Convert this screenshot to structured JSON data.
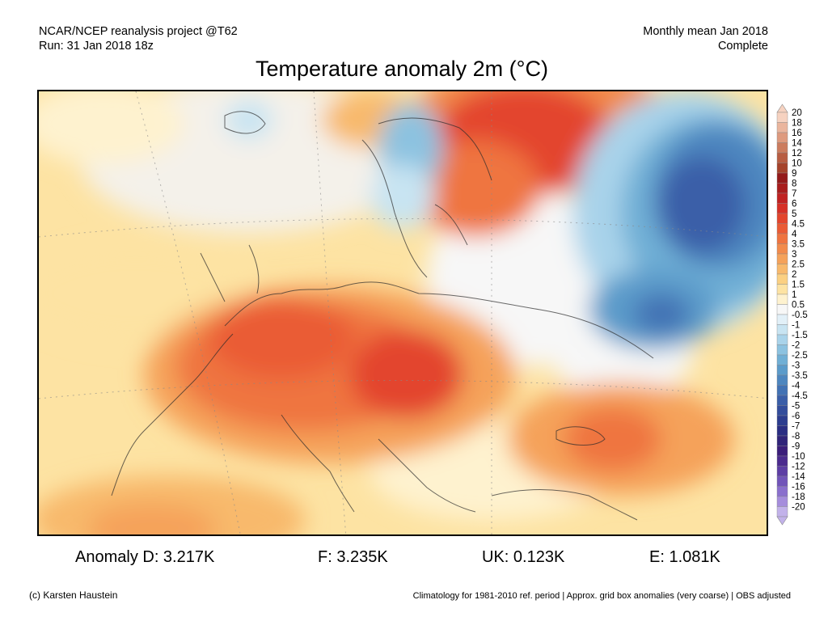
{
  "header": {
    "line1_left": "NCAR/NCEP reanalysis project @T62",
    "line2_left": "Run: 31 Jan 2018 18z",
    "line1_right": "Monthly mean Jan 2018",
    "line2_right": "Complete"
  },
  "title": "Temperature anomaly 2m (°C)",
  "colorbar": {
    "labels": [
      "20",
      "18",
      "16",
      "14",
      "12",
      "10",
      "9",
      "8",
      "7",
      "6",
      "5",
      "4.5",
      "4",
      "3.5",
      "3",
      "2.5",
      "2",
      "1.5",
      "1",
      "0.5",
      "-0.5",
      "-1",
      "-1.5",
      "-2",
      "-2.5",
      "-3",
      "-3.5",
      "-4",
      "-4.5",
      "-5",
      "-6",
      "-7",
      "-8",
      "-9",
      "-10",
      "-12",
      "-14",
      "-16",
      "-18",
      "-20"
    ],
    "colors": [
      "#f6d2c0",
      "#eab59d",
      "#de9a7e",
      "#cc7c5e",
      "#b85d42",
      "#a5432b",
      "#941a1a",
      "#a81d1d",
      "#c02222",
      "#d63027",
      "#e3452d",
      "#ea5b35",
      "#ef7440",
      "#f28b4c",
      "#f5a25a",
      "#f8b96c",
      "#fbd082",
      "#fde3a3",
      "#fef2cf",
      "#f7f7f7",
      "#e2f0f8",
      "#c8e4f2",
      "#a9d3ea",
      "#8cc2e0",
      "#70afd5",
      "#5b9bca",
      "#4d86bf",
      "#4272b4",
      "#3a5ea8",
      "#334d9c",
      "#2c3d8f",
      "#2a2e83",
      "#302479",
      "#3b1e7a",
      "#4b2b8e",
      "#5d3ea4",
      "#7154b9",
      "#8a6fcd",
      "#a58ddc",
      "#c2b2ea"
    ]
  },
  "stats": {
    "D": "Anomaly D: 3.217K",
    "F": "F: 3.235K",
    "UK": "UK: 0.123K",
    "E": "E: 1.081K"
  },
  "footer": {
    "left": "(c) Karsten Haustein",
    "right": "Climatology for 1981-2010 ref. period | Approx. grid box anomalies (very coarse) | OBS adjusted"
  }
}
